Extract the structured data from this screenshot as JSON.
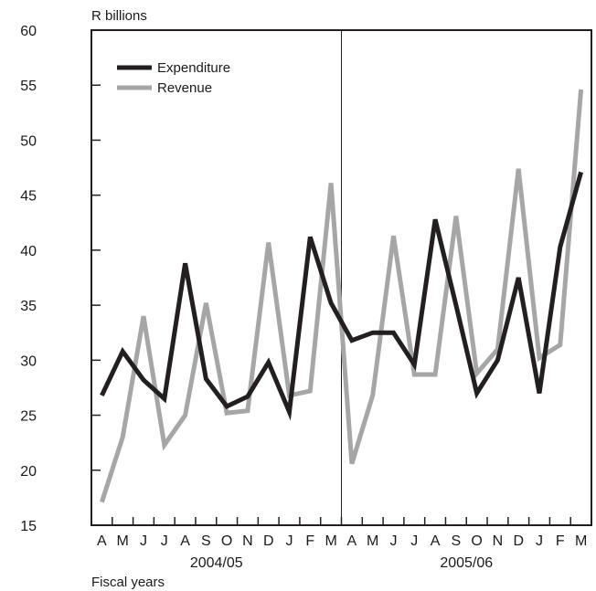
{
  "chart_data": {
    "type": "line",
    "ylabel": "R billions",
    "xlabel": "Fiscal years",
    "ylim": [
      15,
      60
    ],
    "yticks": [
      15,
      20,
      25,
      30,
      35,
      40,
      45,
      50,
      55,
      60
    ],
    "categories": [
      "A",
      "M",
      "J",
      "J",
      "A",
      "S",
      "O",
      "N",
      "D",
      "J",
      "F",
      "M",
      "A",
      "M",
      "J",
      "J",
      "A",
      "S",
      "O",
      "N",
      "D",
      "J",
      "F",
      "M"
    ],
    "groups": [
      {
        "label": "2004/05",
        "start": 0,
        "end": 11
      },
      {
        "label": "2005/06",
        "start": 12,
        "end": 23
      }
    ],
    "legend_position": "top-left",
    "grid": false,
    "series": [
      {
        "name": "Expenditure",
        "color": "#231f20",
        "values": [
          26.8,
          30.8,
          28.2,
          26.5,
          38.8,
          28.3,
          25.8,
          26.7,
          29.8,
          25.3,
          41.2,
          35.2,
          31.8,
          32.5,
          32.5,
          29.6,
          42.8,
          35.0,
          27.0,
          30.0,
          37.5,
          27.0,
          40.3,
          47.1
        ]
      },
      {
        "name": "Revenue",
        "color": "#a6a6a6",
        "values": [
          17.1,
          23.0,
          34.0,
          22.3,
          25.0,
          35.2,
          25.2,
          25.4,
          40.7,
          26.8,
          27.2,
          46.1,
          20.6,
          26.8,
          41.3,
          28.7,
          28.7,
          43.1,
          28.8,
          31.0,
          47.4,
          30.2,
          31.4,
          54.6
        ]
      }
    ]
  }
}
